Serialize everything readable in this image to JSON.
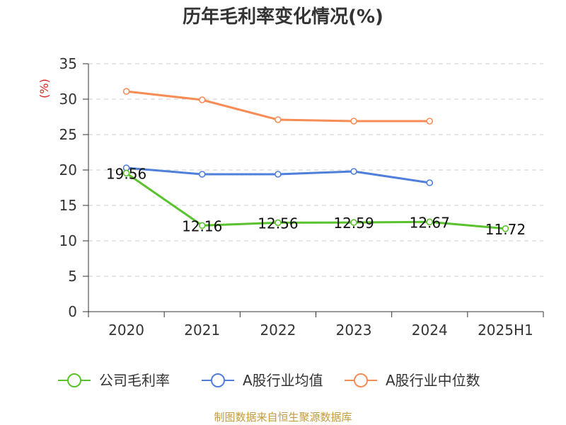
{
  "source_note": "制图数据来自恒生聚源数据库",
  "colors": {
    "grid": "#cccccc",
    "axis": "#333333",
    "ylabel": "#e02020",
    "footer": "#c39b3a"
  },
  "chart_data": {
    "type": "line",
    "title": "历年毛利率变化情况(%)",
    "xlabel": "",
    "ylabel": "(%)",
    "categories": [
      "2020",
      "2021",
      "2022",
      "2023",
      "2024",
      "2025H1"
    ],
    "ylim": [
      0,
      35
    ],
    "yticks": [
      0,
      5,
      10,
      15,
      20,
      25,
      30,
      35
    ],
    "grid": true,
    "legend_position": "bottom",
    "series": [
      {
        "name": "公司毛利率",
        "color": "#5ac22d",
        "data_labels": true,
        "values": [
          19.56,
          12.16,
          12.56,
          12.59,
          12.67,
          11.72
        ]
      },
      {
        "name": "A股行业均值",
        "color": "#4f7fdb",
        "data_labels": false,
        "values": [
          20.3,
          19.4,
          19.4,
          19.8,
          18.2,
          null
        ]
      },
      {
        "name": "A股行业中位数",
        "color": "#f78c55",
        "data_labels": false,
        "values": [
          31.1,
          29.9,
          27.1,
          26.9,
          26.9,
          null
        ]
      }
    ]
  }
}
